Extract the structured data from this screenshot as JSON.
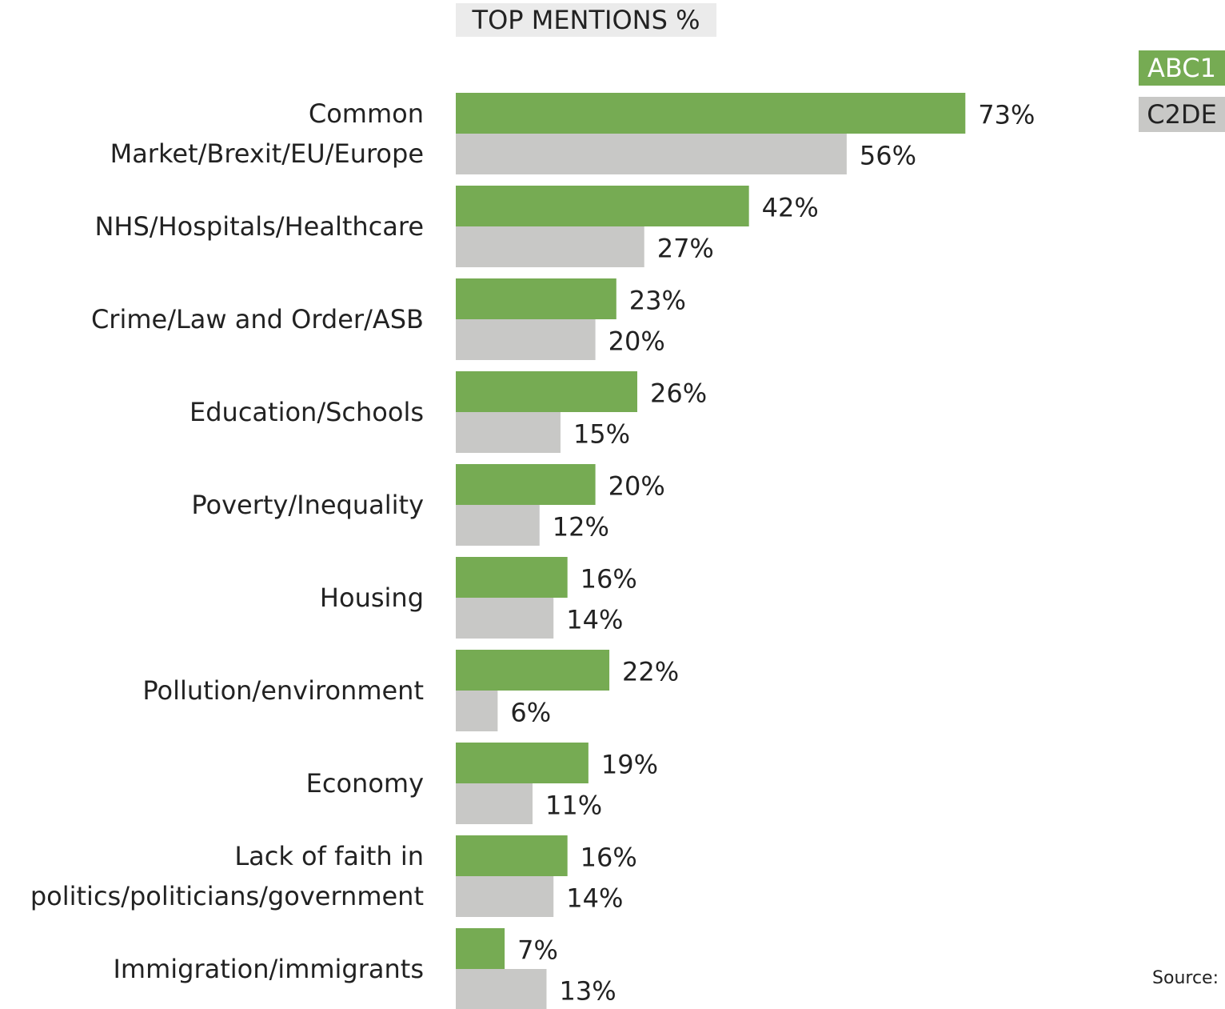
{
  "colors": {
    "abc1": "#76ab53",
    "c2de": "#c8c8c6",
    "text": "#222222",
    "title_bg": "#ebebeb"
  },
  "source_label": "Source:",
  "chart_data": {
    "type": "bar",
    "orientation": "horizontal",
    "title": "TOP MENTIONS %",
    "categories": [
      [
        "Common",
        "Market/Brexit/EU/Europe"
      ],
      [
        "NHS/Hospitals/Healthcare"
      ],
      [
        "Crime/Law and Order/ASB"
      ],
      [
        "Education/Schools"
      ],
      [
        "Poverty/Inequality"
      ],
      [
        "Housing"
      ],
      [
        "Pollution/environment"
      ],
      [
        "Economy"
      ],
      [
        "Lack of faith in",
        "politics/politicians/government"
      ],
      [
        "Immigration/immigrants"
      ]
    ],
    "series": [
      {
        "name": "ABC1",
        "color": "#76ab53",
        "values": [
          73,
          42,
          23,
          26,
          20,
          16,
          22,
          19,
          16,
          7
        ],
        "labels": [
          "73%",
          "42%",
          "23%",
          "26%",
          "20%",
          "16%",
          "22%",
          "19%",
          "16%",
          "7%"
        ]
      },
      {
        "name": "C2DE",
        "color": "#c8c8c6",
        "values": [
          56,
          27,
          20,
          15,
          12,
          14,
          6,
          11,
          14,
          13
        ],
        "labels": [
          "56%",
          "27%",
          "20%",
          "15%",
          "12%",
          "14%",
          "6%",
          "11%",
          "14%",
          "13%"
        ]
      }
    ],
    "legend_position": "top-right",
    "grid": false
  }
}
